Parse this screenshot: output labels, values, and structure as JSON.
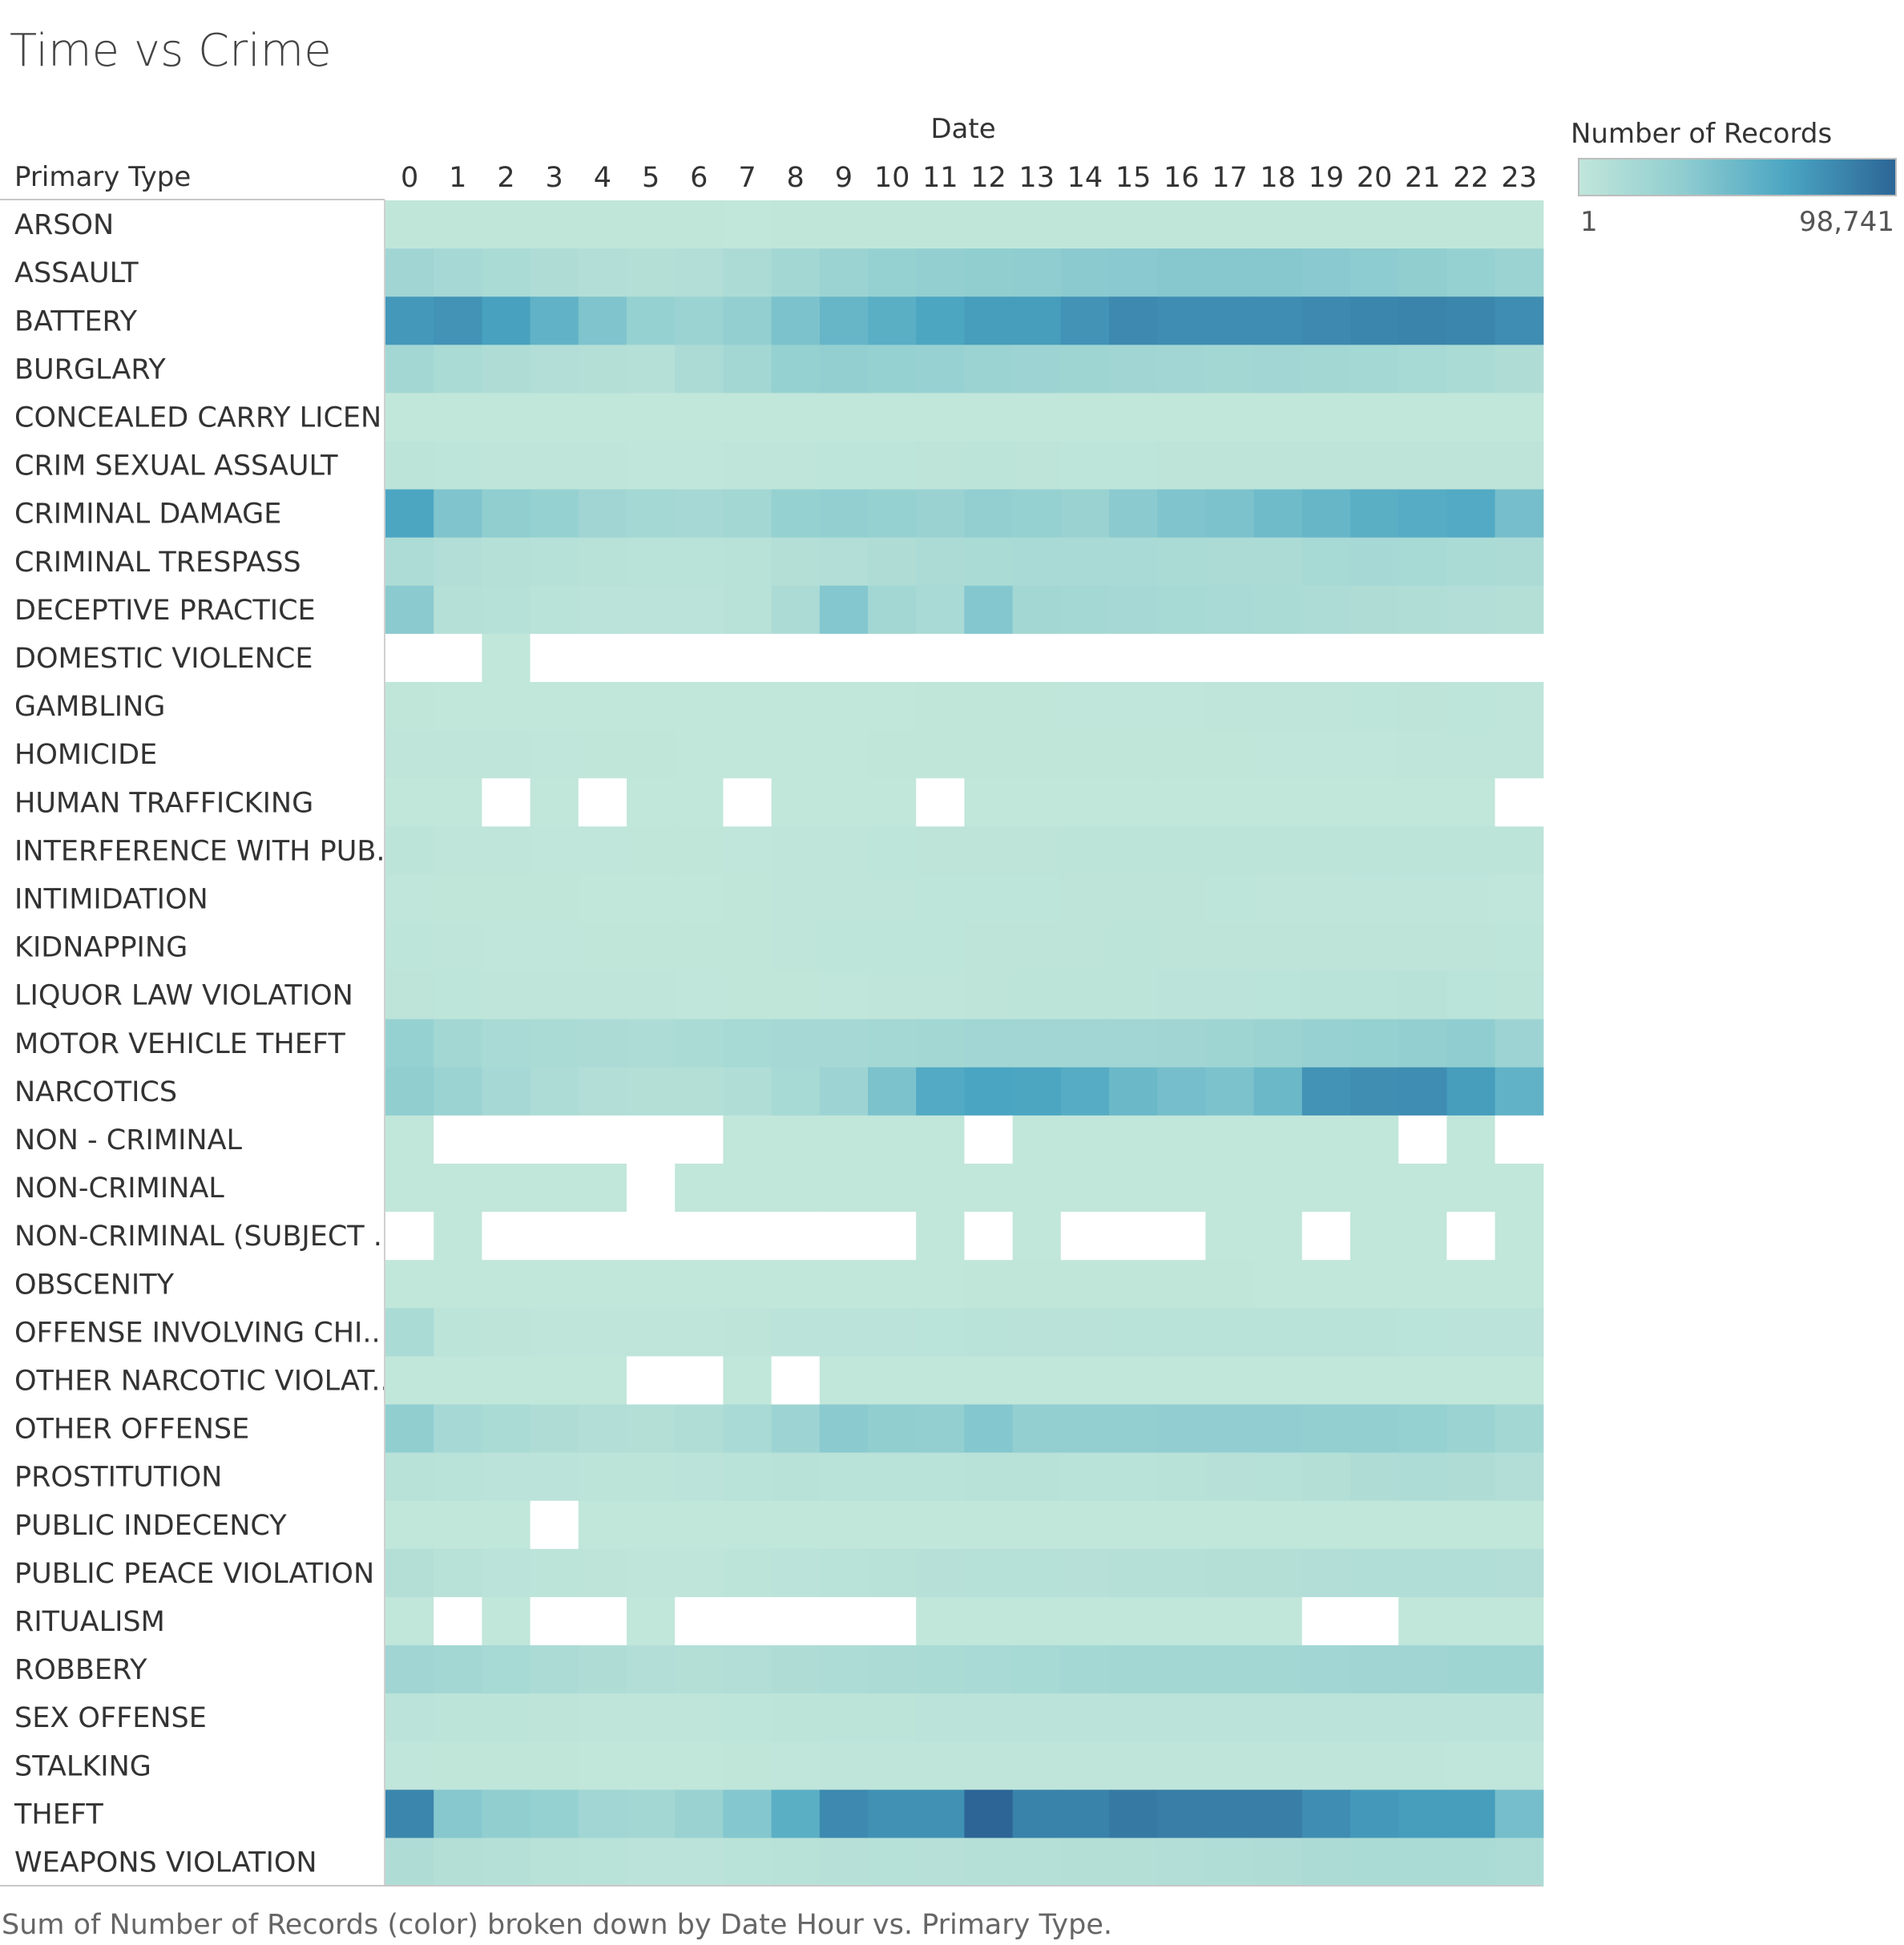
{
  "chart_data": {
    "type": "heatmap",
    "title": "Time vs Crime",
    "caption": "Sum of Number of Records (color) broken down by Date Hour vs. Primary Type.",
    "row_header": "Primary Type",
    "column_header": "Date",
    "x": [
      0,
      1,
      2,
      3,
      4,
      5,
      6,
      7,
      8,
      9,
      10,
      11,
      12,
      13,
      14,
      15,
      16,
      17,
      18,
      19,
      20,
      21,
      22,
      23
    ],
    "y": [
      "ARSON",
      "ASSAULT",
      "BATTERY",
      "BURGLARY",
      "CONCEALED CARRY LICEN..",
      "CRIM SEXUAL ASSAULT",
      "CRIMINAL DAMAGE",
      "CRIMINAL TRESPASS",
      "DECEPTIVE PRACTICE",
      "DOMESTIC VIOLENCE",
      "GAMBLING",
      "HOMICIDE",
      "HUMAN TRAFFICKING",
      "INTERFERENCE WITH PUB..",
      "INTIMIDATION",
      "KIDNAPPING",
      "LIQUOR LAW VIOLATION",
      "MOTOR VEHICLE THEFT",
      "NARCOTICS",
      "NON - CRIMINAL",
      "NON-CRIMINAL",
      "NON-CRIMINAL (SUBJECT ..",
      "OBSCENITY",
      "OFFENSE INVOLVING CHI..",
      "OTHER NARCOTIC VIOLAT..",
      "OTHER OFFENSE",
      "PROSTITUTION",
      "PUBLIC INDECENCY",
      "PUBLIC PEACE VIOLATION",
      "RITUALISM",
      "ROBBERY",
      "SEX OFFENSE",
      "STALKING",
      "THEFT",
      "WEAPONS VIOLATION"
    ],
    "values": [
      [
        500,
        450,
        430,
        400,
        380,
        360,
        340,
        330,
        340,
        350,
        380,
        400,
        450,
        420,
        430,
        440,
        450,
        460,
        470,
        480,
        500,
        510,
        520,
        500
      ],
      [
        22000,
        18000,
        15000,
        12000,
        10000,
        9000,
        10000,
        14000,
        20000,
        25000,
        28000,
        30000,
        32000,
        33000,
        35000,
        36000,
        37000,
        37000,
        37000,
        36000,
        34000,
        32000,
        28000,
        25000
      ],
      [
        72000,
        75000,
        68000,
        55000,
        40000,
        28000,
        25000,
        30000,
        42000,
        52000,
        58000,
        65000,
        70000,
        70000,
        75000,
        80000,
        78000,
        78000,
        78000,
        80000,
        82000,
        83000,
        82000,
        78000
      ],
      [
        20000,
        15000,
        12000,
        10000,
        9000,
        8000,
        14000,
        20000,
        28000,
        30000,
        28000,
        27000,
        25000,
        24000,
        23000,
        22000,
        21000,
        20000,
        21000,
        20000,
        19000,
        17000,
        15000,
        12000
      ],
      [
        20,
        10,
        8,
        6,
        5,
        4,
        5,
        8,
        12,
        15,
        16,
        18,
        20,
        22,
        25,
        28,
        30,
        30,
        28,
        26,
        25,
        24,
        22,
        20
      ],
      [
        2500,
        1800,
        1500,
        1200,
        1000,
        800,
        900,
        1200,
        1500,
        1800,
        1900,
        2000,
        2400,
        2000,
        1900,
        1900,
        2000,
        2000,
        2100,
        2100,
        2200,
        2300,
        2300,
        2200
      ],
      [
        65000,
        40000,
        32000,
        28000,
        22000,
        19000,
        18000,
        20000,
        28000,
        30000,
        28000,
        26000,
        30000,
        28000,
        26000,
        35000,
        40000,
        42000,
        48000,
        52000,
        58000,
        60000,
        62000,
        45000
      ],
      [
        13000,
        10000,
        8000,
        7000,
        6000,
        5000,
        5000,
        6000,
        9000,
        10000,
        12000,
        14000,
        15000,
        16000,
        16000,
        16000,
        15000,
        14000,
        14000,
        17000,
        18000,
        17000,
        15000,
        14000
      ],
      [
        35000,
        8000,
        7000,
        5000,
        4000,
        3500,
        4000,
        6000,
        14000,
        38000,
        20000,
        16000,
        38000,
        20000,
        19000,
        18000,
        17000,
        16000,
        15000,
        13000,
        12000,
        11000,
        10000,
        9000
      ],
      [
        null,
        null,
        3,
        null,
        null,
        null,
        null,
        null,
        null,
        null,
        null,
        null,
        null,
        null,
        null,
        null,
        null,
        null,
        null,
        null,
        null,
        null,
        null,
        null
      ],
      [
        400,
        200,
        100,
        80,
        50,
        30,
        30,
        60,
        150,
        250,
        300,
        400,
        500,
        600,
        700,
        800,
        900,
        1000,
        1200,
        1500,
        1800,
        2000,
        1800,
        1200
      ],
      [
        1200,
        1100,
        1000,
        800,
        600,
        400,
        300,
        250,
        250,
        300,
        350,
        400,
        450,
        450,
        500,
        550,
        600,
        650,
        700,
        800,
        900,
        1000,
        1100,
        1100
      ],
      [
        8,
        4,
        null,
        2,
        null,
        1,
        2,
        null,
        3,
        5,
        6,
        null,
        7,
        5,
        4,
        4,
        5,
        6,
        6,
        5,
        6,
        6,
        4,
        null
      ],
      [
        2500,
        1500,
        1200,
        900,
        700,
        600,
        600,
        800,
        1200,
        1600,
        1800,
        2000,
        2200,
        2300,
        2400,
        2500,
        2600,
        2700,
        2800,
        2900,
        3000,
        3100,
        3000,
        2800
      ],
      [
        800,
        600,
        500,
        400,
        300,
        200,
        300,
        600,
        1200,
        1500,
        1600,
        1700,
        1800,
        1900,
        2000,
        2100,
        2000,
        1800,
        1600,
        1400,
        1200,
        1100,
        1000,
        900
      ],
      [
        1800,
        1200,
        900,
        700,
        500,
        400,
        400,
        600,
        1200,
        1800,
        1900,
        1900,
        2100,
        2000,
        2300,
        2400,
        2300,
        2200,
        2100,
        2200,
        2100,
        2000,
        2000,
        1900
      ],
      [
        2000,
        1800,
        1600,
        1400,
        1200,
        1000,
        800,
        600,
        600,
        800,
        1200,
        1600,
        2000,
        2400,
        2800,
        3200,
        3600,
        4000,
        4400,
        5000,
        5400,
        5800,
        4600,
        3200
      ],
      [
        28000,
        20000,
        16000,
        15000,
        14000,
        13000,
        15000,
        17000,
        18000,
        18000,
        19000,
        20000,
        21000,
        21000,
        21000,
        21000,
        22000,
        23000,
        25000,
        27000,
        28000,
        30000,
        33000,
        24000
      ],
      [
        32000,
        25000,
        18000,
        13000,
        10000,
        9000,
        9500,
        11000,
        17000,
        24000,
        42000,
        62000,
        66000,
        65000,
        60000,
        50000,
        45000,
        42000,
        50000,
        75000,
        77000,
        78000,
        70000,
        55000
      ],
      [
        3,
        null,
        null,
        null,
        null,
        null,
        null,
        2,
        3,
        2,
        3,
        4,
        null,
        2,
        2,
        3,
        3,
        2,
        4,
        3,
        2,
        null,
        2,
        null
      ],
      [
        150,
        120,
        90,
        70,
        60,
        null,
        50,
        90,
        150,
        200,
        220,
        230,
        250,
        240,
        230,
        230,
        220,
        210,
        200,
        190,
        180,
        170,
        160,
        140
      ],
      [
        null,
        1,
        null,
        null,
        null,
        null,
        null,
        null,
        null,
        null,
        null,
        1,
        null,
        1,
        null,
        null,
        null,
        1,
        1,
        null,
        1,
        1,
        null,
        1
      ],
      [
        300,
        250,
        200,
        150,
        100,
        80,
        80,
        100,
        150,
        200,
        250,
        300,
        350,
        350,
        400,
        400,
        350,
        350,
        300,
        300,
        300,
        300,
        300,
        300
      ],
      [
        15000,
        3000,
        2000,
        1500,
        1200,
        1000,
        1200,
        2000,
        3500,
        4000,
        4200,
        4500,
        5000,
        4800,
        4800,
        5000,
        5200,
        5400,
        5200,
        5200,
        5000,
        4600,
        4200,
        3800
      ],
      [
        40,
        20,
        15,
        10,
        5,
        null,
        null,
        5,
        null,
        15,
        25,
        30,
        35,
        40,
        40,
        40,
        35,
        30,
        30,
        30,
        30,
        25,
        20,
        15
      ],
      [
        32000,
        18000,
        15000,
        12000,
        10000,
        9000,
        11000,
        16000,
        24000,
        35000,
        32000,
        30000,
        38000,
        30000,
        30000,
        30000,
        31000,
        31000,
        31000,
        30000,
        30000,
        28000,
        25000,
        20000
      ],
      [
        6000,
        5000,
        4000,
        3500,
        3000,
        3000,
        4000,
        5000,
        6000,
        5500,
        5000,
        5000,
        6000,
        6000,
        5500,
        5500,
        6000,
        6500,
        7000,
        9000,
        12000,
        13000,
        12000,
        10000
      ],
      [
        30,
        20,
        15,
        null,
        10,
        10,
        15,
        20,
        40,
        60,
        80,
        100,
        120,
        130,
        140,
        150,
        140,
        130,
        120,
        110,
        100,
        90,
        70,
        50
      ],
      [
        9000,
        6000,
        4000,
        3000,
        2000,
        1500,
        1600,
        2500,
        4000,
        5500,
        6000,
        6500,
        7000,
        7200,
        7500,
        8000,
        8500,
        9000,
        9500,
        10000,
        10500,
        10800,
        10500,
        10000
      ],
      [
        2,
        null,
        1,
        null,
        null,
        1,
        null,
        null,
        null,
        null,
        null,
        1,
        1,
        1,
        1,
        1,
        1,
        1,
        1,
        null,
        null,
        1,
        1,
        1
      ],
      [
        22000,
        20000,
        17000,
        14000,
        12000,
        10000,
        9000,
        10000,
        12000,
        13000,
        14000,
        15000,
        16000,
        17000,
        19000,
        20000,
        20000,
        20000,
        20000,
        21000,
        22000,
        22000,
        23000,
        23000
      ],
      [
        3500,
        3000,
        2500,
        2000,
        1500,
        1000,
        1200,
        1800,
        2500,
        3000,
        3200,
        3300,
        3800,
        3500,
        3600,
        3700,
        3800,
        3900,
        4000,
        4000,
        4000,
        3900,
        3800,
        3700
      ],
      [
        800,
        600,
        500,
        400,
        300,
        250,
        300,
        500,
        800,
        1000,
        1100,
        1200,
        1300,
        1300,
        1300,
        1300,
        1200,
        1200,
        1100,
        1100,
        1000,
        1000,
        900,
        900
      ],
      [
        82000,
        37000,
        32000,
        28000,
        21000,
        20000,
        26000,
        38000,
        58000,
        80000,
        76000,
        76000,
        98741,
        84000,
        84000,
        88000,
        86000,
        86000,
        86000,
        78000,
        72000,
        70000,
        70000,
        45000
      ],
      [
        12000,
        9000,
        8000,
        6000,
        5000,
        4000,
        4000,
        5000,
        6000,
        6500,
        7000,
        7500,
        8000,
        8500,
        9000,
        9500,
        10000,
        11000,
        12000,
        14000,
        15000,
        15000,
        15000,
        13000
      ]
    ],
    "color_scale": {
      "title": "Number of Records",
      "min": 1,
      "max": 98741,
      "min_label": "1",
      "max_label": "98,741",
      "colors": [
        "#c1e6da",
        "#8fcdd0",
        "#4aa5c2",
        "#2c6596"
      ]
    },
    "legend_position": "top-right",
    "grid": false
  }
}
